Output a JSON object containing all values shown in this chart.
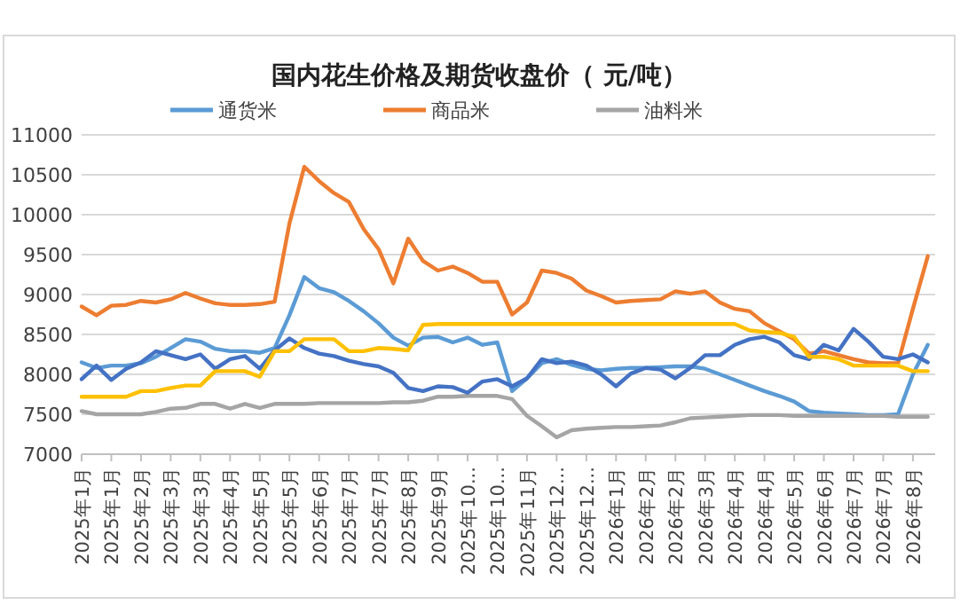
{
  "chart_data": {
    "type": "line",
    "title": "国内花生价格及期货收盘价（ 元/吨）",
    "categories": [
      "2025年1月",
      null,
      "2025年1月",
      null,
      "2025年2月",
      null,
      "2025年3月",
      null,
      "2025年3月",
      null,
      "2025年4月",
      null,
      "2025年5月",
      null,
      "2025年5月",
      null,
      "2025年6月",
      null,
      "2025年7月",
      null,
      "2025年7月",
      null,
      "2025年8月",
      null,
      "2025年9月",
      null,
      "2025年10...",
      null,
      "2025年10...",
      null,
      "2025年11月",
      null,
      "2025年12...",
      null,
      "2025年12...",
      null,
      "2026年1月",
      null,
      "2026年2月",
      null,
      "2026年2月",
      null,
      "2026年3月",
      null,
      "2026年4月",
      null,
      "2026年4月",
      null,
      "2026年5月",
      null,
      "2026年6月",
      null,
      "2026年7月",
      null,
      "2026年7月",
      null,
      "2026年8月",
      null
    ],
    "ylim": [
      7000,
      11000
    ],
    "yticks": [
      7000,
      7500,
      8000,
      8500,
      9000,
      9500,
      10000,
      10500,
      11000
    ],
    "grid": "y",
    "legend": "top",
    "series": [
      {
        "name": "通货米",
        "color": "#5b9bd5",
        "values": [
          8150,
          8080,
          8110,
          8110,
          8140,
          8220,
          8330,
          8440,
          8410,
          8320,
          8290,
          8290,
          8270,
          8330,
          8740,
          9220,
          9080,
          9030,
          8920,
          8790,
          8640,
          8460,
          8360,
          8460,
          8470,
          8400,
          8460,
          8370,
          8400,
          7790,
          7950,
          8140,
          8190,
          8120,
          8070,
          8050,
          8070,
          8080,
          8080,
          8090,
          8100,
          8100,
          8070,
          8000,
          7930,
          7860,
          7790,
          7730,
          7660,
          7540,
          7520,
          7510,
          7500,
          7490,
          7490,
          7500,
          8000,
          8370
        ]
      },
      {
        "name": "商品米",
        "color": "#ed7d31",
        "values": [
          8850,
          8740,
          8860,
          8870,
          8920,
          8900,
          8940,
          9020,
          8950,
          8890,
          8870,
          8870,
          8880,
          8910,
          9890,
          10600,
          10420,
          10270,
          10160,
          9820,
          9570,
          9140,
          9700,
          9420,
          9300,
          9350,
          9270,
          9160,
          9160,
          8750,
          8900,
          9300,
          9270,
          9200,
          9050,
          8980,
          8900,
          8920,
          8930,
          8940,
          9040,
          9010,
          9040,
          8900,
          8820,
          8790,
          8640,
          8540,
          8440,
          8260,
          8290,
          8240,
          8190,
          8150,
          8140,
          8140,
          8820,
          9480
        ]
      },
      {
        "name": "油料米",
        "color": "#a5a5a5",
        "values": [
          7540,
          7500,
          7500,
          7500,
          7500,
          7530,
          7570,
          7580,
          7630,
          7630,
          7570,
          7630,
          7580,
          7630,
          7630,
          7630,
          7640,
          7640,
          7640,
          7640,
          7640,
          7650,
          7650,
          7670,
          7720,
          7720,
          7730,
          7730,
          7730,
          7690,
          7480,
          7350,
          7210,
          7300,
          7320,
          7330,
          7340,
          7340,
          7350,
          7360,
          7400,
          7450,
          7460,
          7470,
          7480,
          7490,
          7490,
          7490,
          7480,
          7480,
          7480,
          7480,
          7480,
          7480,
          7480,
          7470,
          7470,
          7470
        ]
      },
      {
        "color": "#4472c4",
        "values": [
          7940,
          8110,
          7930,
          8070,
          8150,
          8290,
          8240,
          8190,
          8250,
          8070,
          8190,
          8230,
          8070,
          8300,
          8450,
          8330,
          8260,
          8230,
          8170,
          8130,
          8100,
          8020,
          7830,
          7790,
          7850,
          7840,
          7770,
          7910,
          7940,
          7850,
          7950,
          8190,
          8140,
          8160,
          8110,
          8000,
          7850,
          8010,
          8080,
          8060,
          7950,
          8080,
          8240,
          8240,
          8370,
          8440,
          8470,
          8400,
          8240,
          8190,
          8370,
          8300,
          8570,
          8410,
          8220,
          8190,
          8250,
          8150
        ]
      },
      {
        "color": "#ffc000",
        "values": [
          7720,
          7720,
          7720,
          7720,
          7790,
          7790,
          7830,
          7860,
          7860,
          8040,
          8040,
          8040,
          7970,
          8290,
          8290,
          8440,
          8440,
          8440,
          8290,
          8290,
          8330,
          8320,
          8300,
          8620,
          8630,
          8630,
          8630,
          8630,
          8630,
          8630,
          8630,
          8630,
          8630,
          8630,
          8630,
          8630,
          8630,
          8630,
          8630,
          8630,
          8630,
          8630,
          8630,
          8630,
          8630,
          8550,
          8530,
          8520,
          8470,
          8220,
          8220,
          8190,
          8110,
          8110,
          8110,
          8110,
          8040,
          8040
        ]
      }
    ]
  }
}
